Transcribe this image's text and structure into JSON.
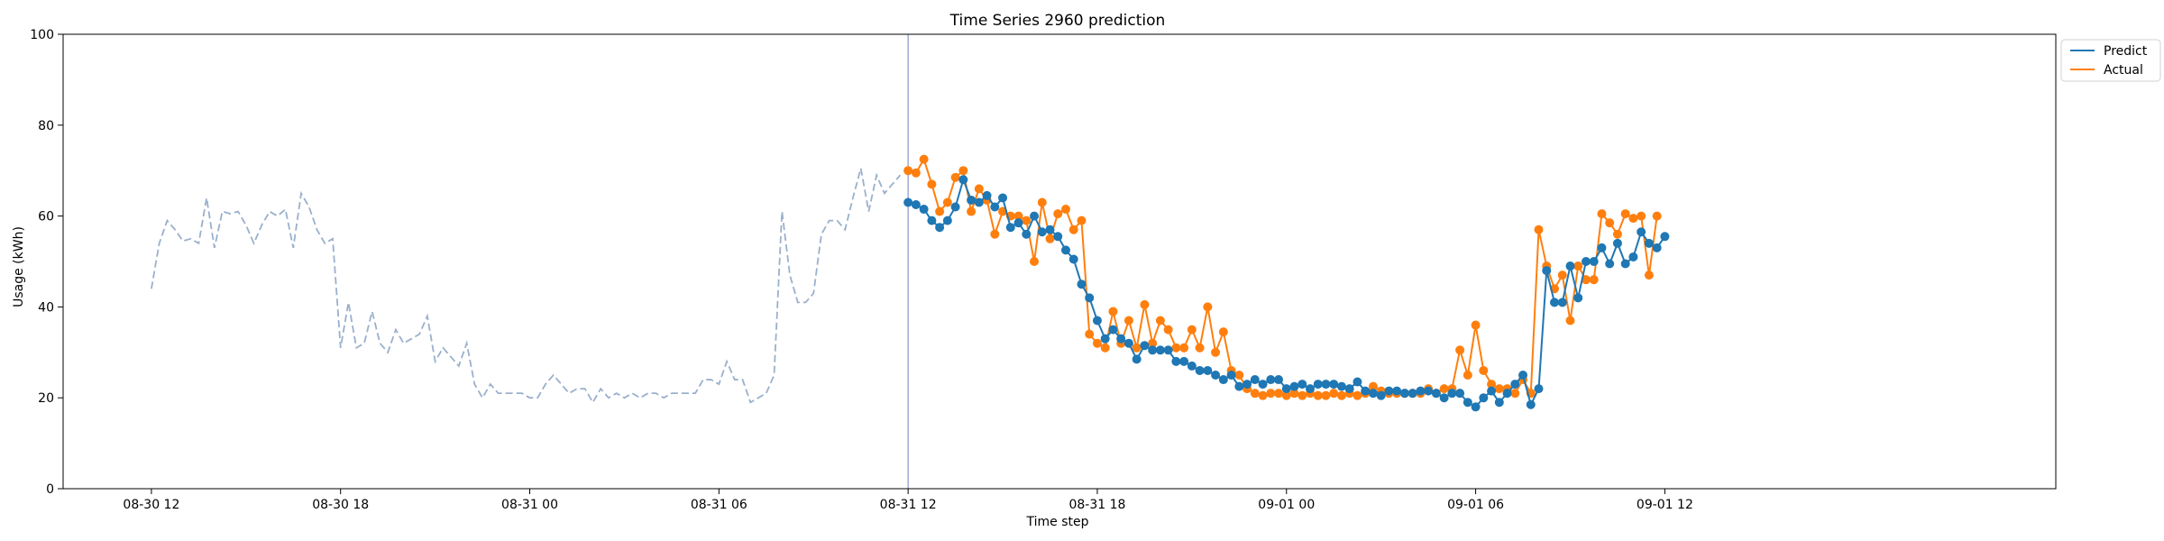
{
  "chart_data": {
    "type": "line",
    "title": "Time Series 2960 prediction",
    "xlabel": "Time step",
    "ylabel": "Usage (kWh)",
    "ylim": [
      0,
      100
    ],
    "yticks": [
      "0",
      "20",
      "40",
      "60",
      "80",
      "100"
    ],
    "xlim": [
      -0.7,
      15.1
    ],
    "xticks": [
      {
        "label": "08-30 12",
        "at": 0
      },
      {
        "label": "08-30 18",
        "at": 1.5
      },
      {
        "label": "08-31 00",
        "at": 3
      },
      {
        "label": "08-31 06",
        "at": 4.5
      },
      {
        "label": "08-31 12",
        "at": 6
      },
      {
        "label": "08-31 18",
        "at": 7.5
      },
      {
        "label": "09-01 00",
        "at": 9
      },
      {
        "label": "09-01 06",
        "at": 10.5
      },
      {
        "label": "09-01 12",
        "at": 12
      }
    ],
    "forecast_start": 6,
    "legend": {
      "position": "top-right",
      "entries": [
        "Predict",
        "Actual"
      ]
    },
    "colors": {
      "history": "#9ab0cc",
      "predict": "#1f77b4",
      "actual": "#ff7f0e",
      "split_line": "#8f9fcf"
    },
    "series": [
      {
        "role": "history",
        "style": "dashed",
        "start": 0,
        "step": 0.0625,
        "values": [
          44,
          54,
          59,
          57,
          54.5,
          55,
          54,
          64,
          53,
          61,
          60.5,
          61,
          58,
          54,
          58,
          61,
          60,
          61.5,
          53,
          65,
          62,
          57,
          54,
          55,
          31,
          41,
          31,
          32,
          39,
          32,
          30,
          35,
          32,
          33,
          34,
          38,
          28,
          31,
          29,
          27,
          32,
          23,
          20,
          23,
          21,
          21,
          21,
          21,
          20,
          20,
          23,
          25,
          23,
          21,
          22,
          22,
          19,
          22,
          20,
          21,
          20,
          21,
          20,
          21,
          21,
          20,
          21,
          21,
          21,
          21,
          24,
          24,
          23,
          28,
          24,
          24,
          19,
          20,
          21,
          25,
          61,
          47,
          41,
          41,
          43,
          56,
          59,
          59,
          57,
          64,
          70.5,
          61,
          69,
          65,
          67,
          69
        ]
      },
      {
        "name": "Predict",
        "style": "line-markers",
        "start": 6,
        "step": 0.0625,
        "values": [
          63,
          62.5,
          61.5,
          59,
          57.5,
          59,
          62,
          68,
          63.5,
          63,
          64.5,
          62,
          64,
          57.5,
          58.5,
          56,
          60,
          56.5,
          57,
          55.5,
          52.5,
          50.5,
          45,
          42,
          37,
          33,
          35,
          33,
          32,
          28.5,
          31.5,
          30.5,
          30.5,
          30.5,
          28,
          28,
          27,
          26,
          26,
          25,
          24,
          25,
          22.5,
          23,
          24,
          23,
          24,
          24,
          22,
          22.5,
          23,
          22,
          23,
          23,
          23,
          22.5,
          22,
          23.5,
          21.5,
          21,
          20.5,
          21.5,
          21.5,
          21,
          21,
          21.5,
          21.5,
          21,
          20,
          21,
          21,
          19,
          18,
          20,
          21.5,
          19,
          21,
          23,
          25,
          18.5,
          22,
          48,
          41,
          41,
          49,
          42,
          50,
          50,
          53,
          49.5,
          54,
          49.5,
          51,
          56.5,
          54,
          53,
          55.5
        ]
      },
      {
        "name": "Actual",
        "style": "line-markers",
        "start": 6,
        "step": 0.0625,
        "values": [
          70,
          69.5,
          72.5,
          67,
          61,
          63,
          68.5,
          70,
          61,
          66,
          63.5,
          56,
          61,
          60,
          60,
          59,
          50,
          63,
          55,
          60.5,
          61.5,
          57,
          59,
          34,
          32,
          31,
          39,
          32,
          37,
          31,
          40.5,
          32,
          37,
          35,
          31,
          31,
          35,
          31,
          40,
          30,
          34.5,
          26,
          25,
          22,
          21,
          20.5,
          21,
          21,
          20.5,
          21,
          20.5,
          21,
          20.5,
          20.5,
          21,
          20.5,
          21,
          20.5,
          21,
          22.5,
          21.5,
          21,
          21,
          21,
          21,
          21,
          22,
          21,
          22,
          22,
          30.5,
          25,
          36,
          26,
          23,
          22,
          22,
          21,
          24,
          21,
          57,
          49,
          44,
          47,
          37,
          49,
          46,
          46,
          60.5,
          58.5,
          56,
          60.5,
          59.5,
          60,
          47,
          60
        ]
      }
    ]
  }
}
